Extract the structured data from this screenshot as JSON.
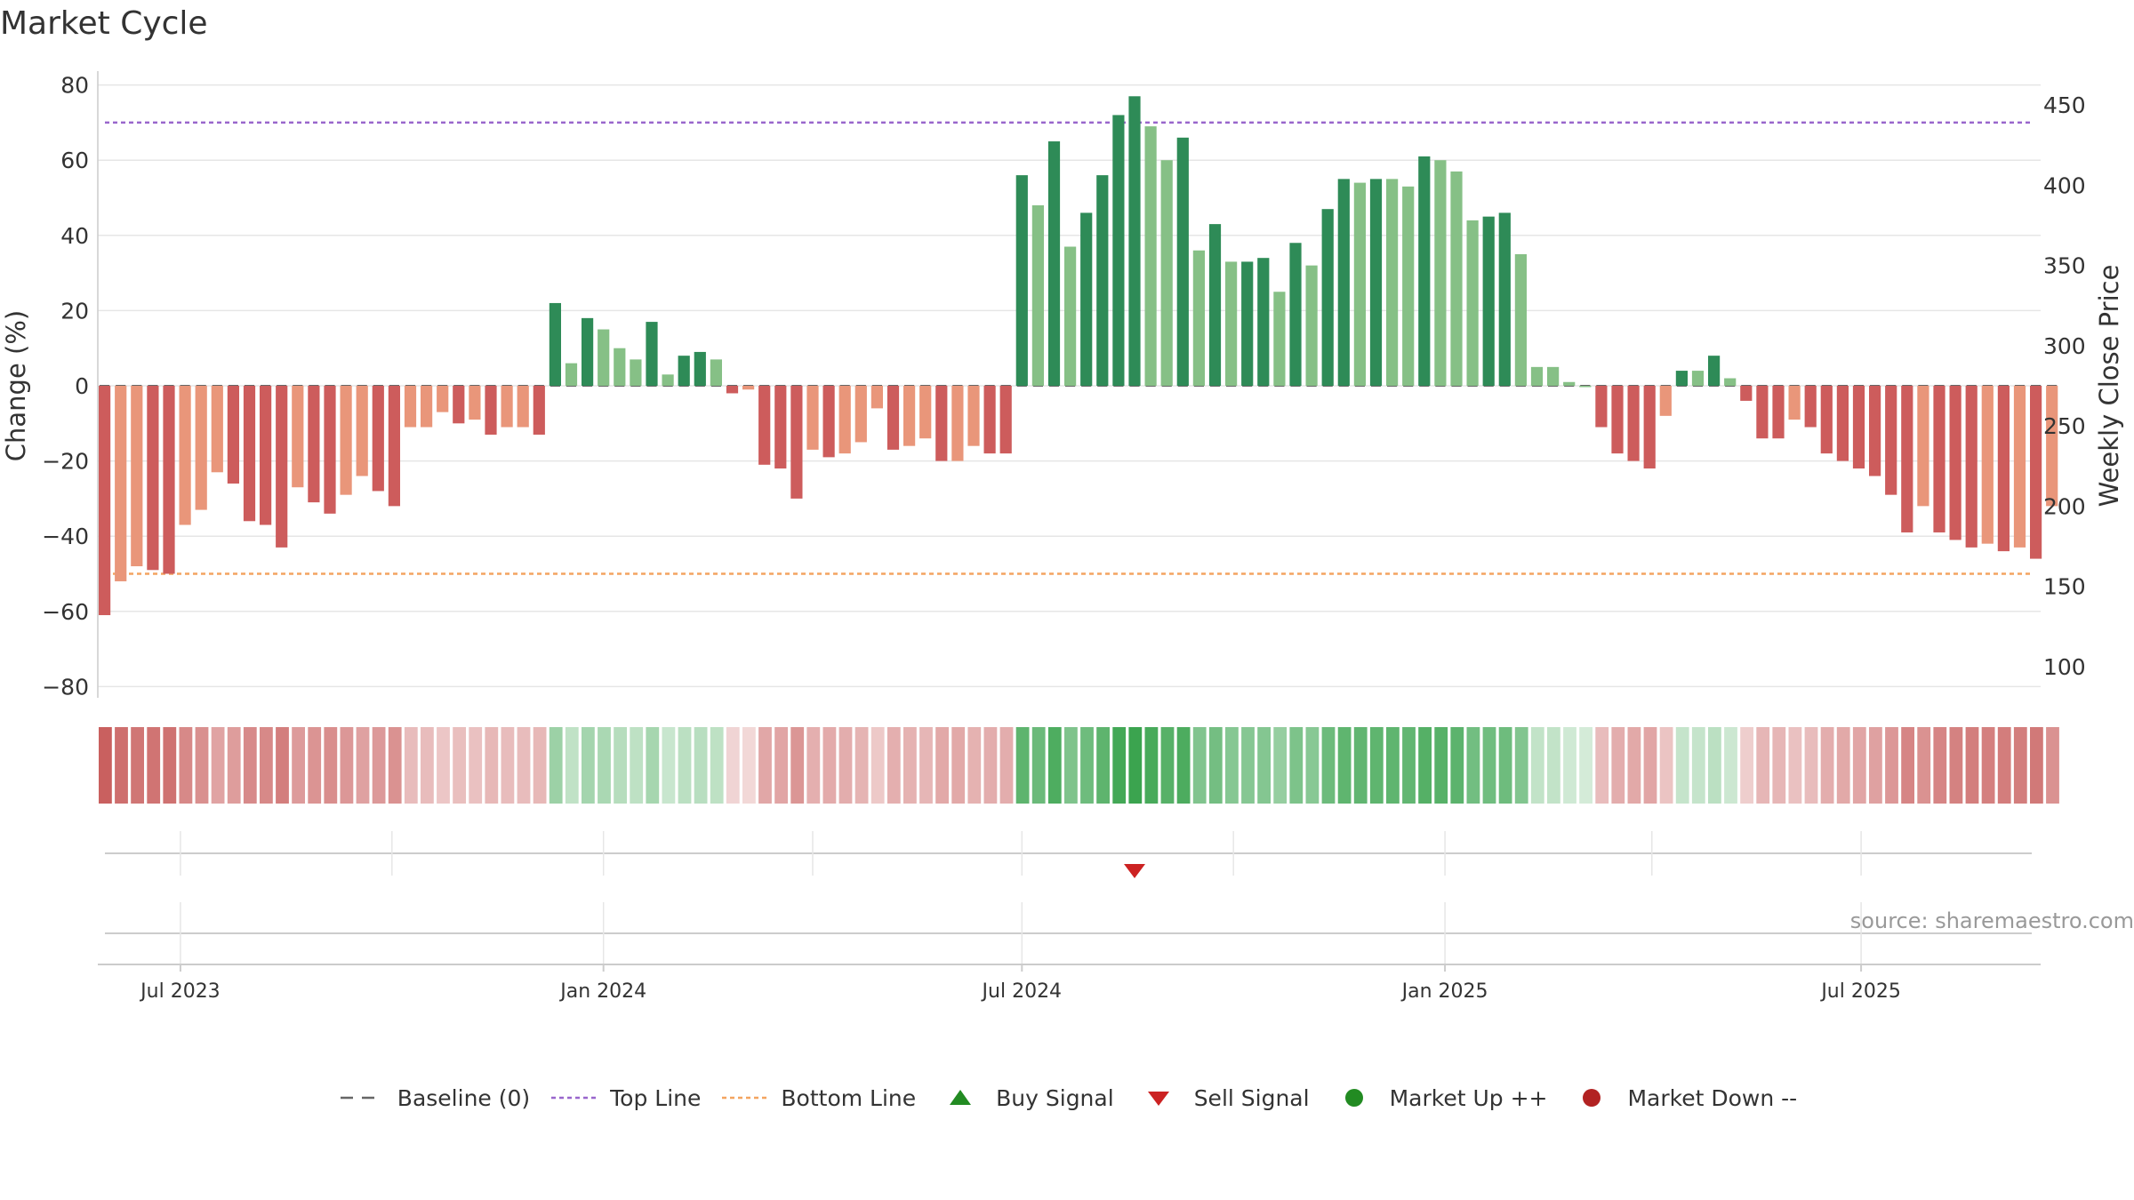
{
  "title": "Market Cycle",
  "source": "source: sharemaestro.com",
  "legend": {
    "baseline": "Baseline (0)",
    "top_line": "Top Line",
    "bottom_line": "Bottom Line",
    "buy_signal": "Buy Signal",
    "sell_signal": "Sell Signal",
    "market_up": "Market Up ++",
    "market_down": "Market Down --"
  },
  "colors": {
    "green_dark": "#2e8b57",
    "green_light": "#86c086",
    "red_dark": "#cd5c5c",
    "red_light": "#e9967a",
    "top_line": "#9966cc",
    "bottom_line": "#f4a460",
    "sell": "#cc2222",
    "buy": "#228b22",
    "market_up": "#228b22",
    "market_down": "#b22222"
  },
  "chart_data": {
    "type": "bar",
    "ylabel": "Change (%)",
    "y2label": "Weekly Close Price",
    "ylim": [
      -80,
      80
    ],
    "yticks": [
      -80,
      -60,
      -40,
      -20,
      0,
      20,
      40,
      60,
      80
    ],
    "y2lim": [
      100,
      450
    ],
    "y2ticks": [
      100,
      150,
      200,
      250,
      300,
      350,
      400,
      450
    ],
    "top_line": 70,
    "bottom_line": -50,
    "x_start": "2023-05-29",
    "week_count": 122,
    "xtick_labels": [
      "Jul 2023",
      "Jan 2024",
      "Jul 2024",
      "Jan 2025",
      "Jul 2025"
    ],
    "xtick_dates": [
      "2023-07-01",
      "2024-01-01",
      "2024-07-01",
      "2025-01-01",
      "2025-07-01"
    ],
    "values": [
      -61,
      -52,
      -48,
      -49,
      -50,
      -37,
      -33,
      -23,
      -26,
      -36,
      -37,
      -43,
      -27,
      -31,
      -34,
      -29,
      -24,
      -28,
      -32,
      -11,
      -11,
      -7,
      -10,
      -9,
      -13,
      -11,
      -11,
      -13,
      22,
      6,
      18,
      15,
      10,
      7,
      17,
      3,
      8,
      9,
      7,
      -2,
      -1,
      -21,
      -22,
      -30,
      -17,
      -19,
      -18,
      -15,
      -6,
      -17,
      -16,
      -14,
      -20,
      -20,
      -16,
      -18,
      -18,
      56,
      48,
      65,
      37,
      46,
      56,
      72,
      77,
      69,
      60,
      66,
      36,
      43,
      33,
      33,
      34,
      25,
      38,
      32,
      47,
      55,
      54,
      55,
      55,
      53,
      61,
      60,
      57,
      44,
      45,
      46,
      35,
      5,
      5,
      1,
      0,
      -11,
      -18,
      -20,
      -22,
      -8,
      4,
      4,
      8,
      2,
      -4,
      -14,
      -14,
      -9,
      -11,
      -18,
      -20,
      -22,
      -24,
      -29,
      -39,
      -32,
      -39,
      -41,
      -43,
      -42,
      -44,
      -43,
      -46,
      -32
    ],
    "shades": [
      "d",
      "l",
      "l",
      "d",
      "d",
      "l",
      "l",
      "l",
      "d",
      "d",
      "d",
      "d",
      "l",
      "d",
      "d",
      "l",
      "l",
      "d",
      "d",
      "l",
      "l",
      "l",
      "d",
      "l",
      "d",
      "l",
      "l",
      "d",
      "d",
      "l",
      "d",
      "l",
      "l",
      "l",
      "d",
      "l",
      "d",
      "d",
      "l",
      "d",
      "l",
      "d",
      "d",
      "d",
      "l",
      "d",
      "l",
      "l",
      "l",
      "d",
      "l",
      "l",
      "d",
      "l",
      "l",
      "d",
      "d",
      "d",
      "l",
      "d",
      "l",
      "d",
      "d",
      "d",
      "d",
      "l",
      "l",
      "d",
      "l",
      "d",
      "l",
      "d",
      "d",
      "l",
      "d",
      "l",
      "d",
      "d",
      "l",
      "d",
      "l",
      "l",
      "d",
      "l",
      "l",
      "l",
      "d",
      "d",
      "l",
      "l",
      "l",
      "l",
      "l",
      "d",
      "d",
      "d",
      "d",
      "l",
      "d",
      "l",
      "d",
      "l",
      "d",
      "d",
      "d",
      "l",
      "d",
      "d",
      "d",
      "d",
      "d",
      "d",
      "d",
      "l",
      "d",
      "d",
      "d",
      "l",
      "d",
      "l",
      "d",
      "l"
    ],
    "signals": [
      {
        "type": "sell",
        "week": 64
      }
    ]
  }
}
